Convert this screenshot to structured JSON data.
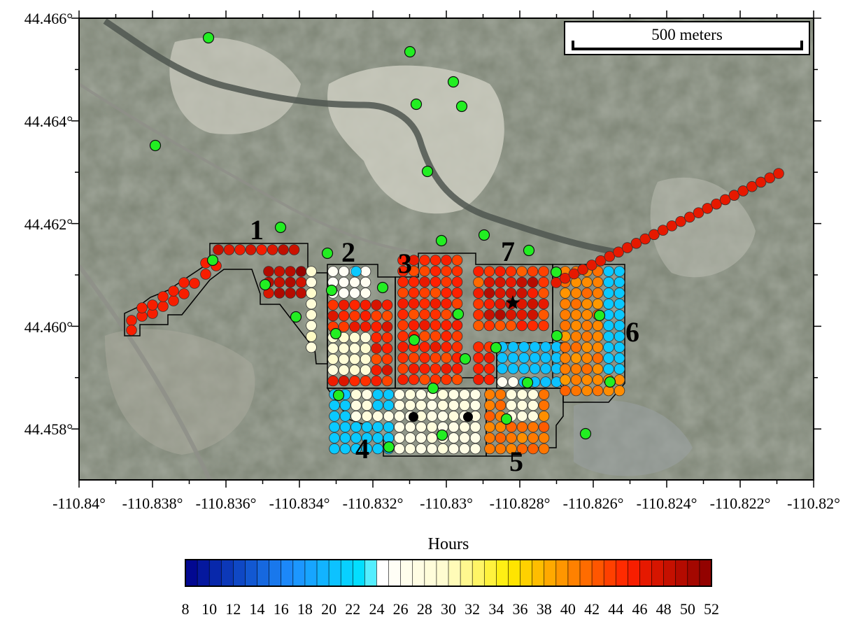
{
  "map": {
    "scale_bar_label": "500 meters",
    "y_ticks": [
      "44.466°",
      "44.464°",
      "44.462°",
      "44.460°",
      "44.458°"
    ],
    "x_ticks": [
      "-110.84°",
      "-110.838°",
      "-110.836°",
      "-110.834°",
      "-110.832°",
      "-110.83°",
      "-110.828°",
      "-110.826°",
      "-110.824°",
      "-110.822°",
      "-110.82°"
    ],
    "zone_labels": [
      "1",
      "2",
      "3",
      "4",
      "5",
      "6",
      "7"
    ],
    "colors": {
      "terrain": "#7f8577",
      "zone_outline": "#000000",
      "station_fill": "#22ee22",
      "line_fill": "#ee1111"
    }
  },
  "colorbar": {
    "title": "Hours",
    "tick_labels": [
      "8",
      "10",
      "12",
      "14",
      "16",
      "18",
      "20",
      "22",
      "24",
      "26",
      "28",
      "30",
      "32",
      "34",
      "36",
      "38",
      "40",
      "42",
      "44",
      "46",
      "48",
      "50",
      "52"
    ],
    "range": [
      8,
      52
    ],
    "bins": 44,
    "colors_low_to_high": [
      "#00008b",
      "#1e90ff",
      "#00e5ff",
      "#ffffff",
      "#fffccc",
      "#ffee00",
      "#ff8c00",
      "#ff2000",
      "#8b0000"
    ]
  }
}
